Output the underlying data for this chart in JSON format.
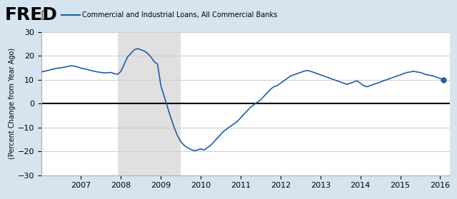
{
  "title": "Commercial and Industrial Loans, All Commercial Banks",
  "ylabel": "(Percent Change from Year Ago)",
  "ylim": [
    -30,
    30
  ],
  "yticks": [
    -30,
    -20,
    -10,
    0,
    10,
    20,
    30
  ],
  "recession_start": 2007.917,
  "recession_end": 2009.5,
  "background_color": "#d6e4f0",
  "plot_bg_color": "#ffffff",
  "recession_color": "#e0e0e0",
  "line_color": "#1f5fa6",
  "zero_line_color": "#000000",
  "grid_color": "#cccccc",
  "header_bg": "#cddce8",
  "fred_text_color": "#000000",
  "series": {
    "dates": [
      2006.0,
      2006.083,
      2006.167,
      2006.25,
      2006.333,
      2006.417,
      2006.5,
      2006.583,
      2006.667,
      2006.75,
      2006.833,
      2006.917,
      2007.0,
      2007.083,
      2007.167,
      2007.25,
      2007.333,
      2007.417,
      2007.5,
      2007.583,
      2007.667,
      2007.75,
      2007.833,
      2007.917,
      2008.0,
      2008.083,
      2008.167,
      2008.25,
      2008.333,
      2008.417,
      2008.5,
      2008.583,
      2008.667,
      2008.75,
      2008.833,
      2008.917,
      2009.0,
      2009.083,
      2009.167,
      2009.25,
      2009.333,
      2009.417,
      2009.5,
      2009.583,
      2009.667,
      2009.75,
      2009.833,
      2009.917,
      2010.0,
      2010.083,
      2010.167,
      2010.25,
      2010.333,
      2010.417,
      2010.5,
      2010.583,
      2010.667,
      2010.75,
      2010.833,
      2010.917,
      2011.0,
      2011.083,
      2011.167,
      2011.25,
      2011.333,
      2011.417,
      2011.5,
      2011.583,
      2011.667,
      2011.75,
      2011.833,
      2011.917,
      2012.0,
      2012.083,
      2012.167,
      2012.25,
      2012.333,
      2012.417,
      2012.5,
      2012.583,
      2012.667,
      2012.75,
      2012.833,
      2012.917,
      2013.0,
      2013.083,
      2013.167,
      2013.25,
      2013.333,
      2013.417,
      2013.5,
      2013.583,
      2013.667,
      2013.75,
      2013.833,
      2013.917,
      2014.0,
      2014.083,
      2014.167,
      2014.25,
      2014.333,
      2014.417,
      2014.5,
      2014.583,
      2014.667,
      2014.75,
      2014.833,
      2014.917,
      2015.0,
      2015.083,
      2015.167,
      2015.25,
      2015.333,
      2015.417,
      2015.5,
      2015.583,
      2015.667,
      2015.75,
      2015.833,
      2015.917,
      2016.0,
      2016.083
    ],
    "values": [
      13.2,
      13.5,
      13.8,
      14.2,
      14.5,
      14.8,
      15.0,
      15.2,
      15.5,
      15.8,
      15.6,
      15.3,
      14.8,
      14.5,
      14.2,
      13.8,
      13.5,
      13.2,
      13.0,
      12.8,
      12.9,
      13.0,
      12.5,
      12.2,
      13.5,
      16.5,
      19.5,
      21.0,
      22.5,
      23.0,
      22.5,
      22.0,
      21.0,
      19.5,
      17.5,
      16.5,
      7.5,
      3.0,
      -1.5,
      -6.0,
      -10.0,
      -13.5,
      -16.0,
      -17.5,
      -18.5,
      -19.2,
      -19.8,
      -19.5,
      -19.0,
      -19.5,
      -18.5,
      -17.5,
      -16.0,
      -14.5,
      -13.0,
      -11.5,
      -10.5,
      -9.5,
      -8.5,
      -7.5,
      -6.0,
      -4.5,
      -3.0,
      -1.5,
      -0.5,
      0.5,
      1.5,
      3.0,
      4.5,
      6.0,
      7.0,
      7.5,
      8.5,
      9.5,
      10.5,
      11.5,
      12.0,
      12.5,
      13.0,
      13.5,
      13.8,
      13.5,
      13.0,
      12.5,
      12.0,
      11.5,
      11.0,
      10.5,
      10.0,
      9.5,
      9.0,
      8.5,
      8.0,
      8.5,
      9.0,
      9.5,
      8.5,
      7.5,
      7.0,
      7.5,
      8.0,
      8.5,
      9.0,
      9.5,
      10.0,
      10.5,
      11.0,
      11.5,
      12.0,
      12.5,
      13.0,
      13.2,
      13.5,
      13.2,
      13.0,
      12.5,
      12.0,
      11.8,
      11.5,
      11.0,
      10.5,
      10.0
    ]
  },
  "xlim": [
    2006.0,
    2016.25
  ],
  "xtick_positions": [
    2007.0,
    2008.0,
    2009.0,
    2010.0,
    2011.0,
    2012.0,
    2013.0,
    2014.0,
    2015.0,
    2016.0
  ],
  "xtick_labels": [
    "2007",
    "2008",
    "2009",
    "2010",
    "2011",
    "2012",
    "2013",
    "2014",
    "2015",
    "2016"
  ]
}
